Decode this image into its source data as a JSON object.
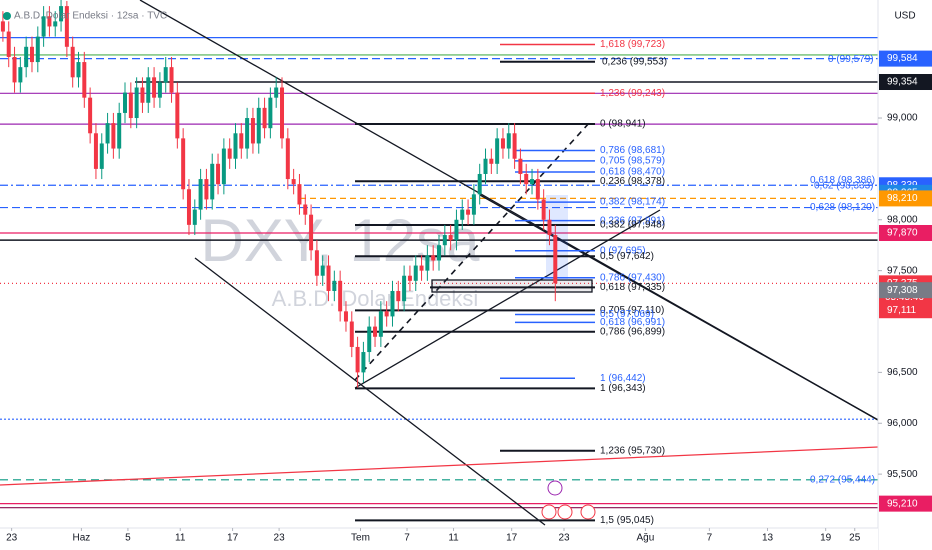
{
  "chart_data": {
    "type": "candlestick",
    "title": "A.B.D. Dolar Endeksi · 12sa · TVC",
    "watermark": "DXY, 12sa",
    "watermark_subtitle": "A.B.D. Dolar Endeksi",
    "currency": "USD",
    "countdown": "05:45:46",
    "up_color": "#089981",
    "down_color": "#f23645",
    "ylim": [
      95.0,
      100.16
    ],
    "yticks": [
      {
        "value": 99,
        "label": "99,000"
      },
      {
        "value": 98,
        "label": "98,000"
      },
      {
        "value": 97.5,
        "label": "97,500"
      },
      {
        "value": 96.5,
        "label": "96,500"
      },
      {
        "value": 96,
        "label": "96,000"
      },
      {
        "value": 95.5,
        "label": "95,500"
      }
    ],
    "xlim": [
      0,
      151
    ],
    "xticks": [
      {
        "value": 2,
        "label": "23"
      },
      {
        "value": 14,
        "label": "Haz"
      },
      {
        "value": 22,
        "label": "5"
      },
      {
        "value": 31,
        "label": "11"
      },
      {
        "value": 40,
        "label": "17"
      },
      {
        "value": 48,
        "label": "23"
      },
      {
        "value": 62,
        "label": "Tem"
      },
      {
        "value": 70,
        "label": "7"
      },
      {
        "value": 78,
        "label": "11"
      },
      {
        "value": 88,
        "label": "17"
      },
      {
        "value": 97,
        "label": "23"
      },
      {
        "value": 111,
        "label": "Ağu"
      },
      {
        "value": 122,
        "label": "7"
      },
      {
        "value": 132,
        "label": "13"
      },
      {
        "value": 142,
        "label": "19"
      },
      {
        "value": 147,
        "label": "25"
      }
    ],
    "ohlc": [
      [
        99.95,
        100.05,
        99.75,
        99.85
      ],
      [
        99.85,
        99.95,
        99.5,
        99.6
      ],
      [
        99.6,
        99.7,
        99.25,
        99.35
      ],
      [
        99.35,
        99.6,
        99.25,
        99.5
      ],
      [
        99.5,
        99.8,
        99.4,
        99.7
      ],
      [
        99.7,
        99.8,
        99.45,
        99.55
      ],
      [
        99.55,
        99.9,
        99.45,
        99.8
      ],
      [
        99.8,
        100.1,
        99.7,
        100
      ],
      [
        100,
        100.1,
        99.8,
        99.9
      ],
      [
        99.9,
        100.05,
        99.8,
        99.95
      ],
      [
        99.95,
        100.2,
        99.85,
        100.1
      ],
      [
        100.1,
        100.15,
        99.6,
        99.7
      ],
      [
        99.7,
        99.8,
        99.3,
        99.4
      ],
      [
        99.4,
        99.65,
        99.3,
        99.55
      ],
      [
        99.55,
        99.65,
        99.1,
        99.2
      ],
      [
        99.2,
        99.3,
        98.75,
        98.85
      ],
      [
        98.85,
        98.95,
        98.4,
        98.5
      ],
      [
        98.5,
        98.85,
        98.4,
        98.75
      ],
      [
        98.75,
        99.05,
        98.65,
        98.95
      ],
      [
        98.95,
        99.05,
        98.6,
        98.7
      ],
      [
        98.7,
        99.15,
        98.6,
        99.05
      ],
      [
        99.05,
        99.35,
        98.95,
        99.25
      ],
      [
        99.25,
        99.35,
        98.9,
        99
      ],
      [
        99,
        99.4,
        98.9,
        99.3
      ],
      [
        99.3,
        99.4,
        99.05,
        99.15
      ],
      [
        99.15,
        99.5,
        99.05,
        99.4
      ],
      [
        99.4,
        99.5,
        99.1,
        99.2
      ],
      [
        99.2,
        99.45,
        99.1,
        99.35
      ],
      [
        99.35,
        99.6,
        99.25,
        99.5
      ],
      [
        99.5,
        99.6,
        99.15,
        99.25
      ],
      [
        99.25,
        99.35,
        98.7,
        98.8
      ],
      [
        98.8,
        98.9,
        98.2,
        98.3
      ],
      [
        98.3,
        98.4,
        97.85,
        97.95
      ],
      [
        97.95,
        98.2,
        97.85,
        98.1
      ],
      [
        98.1,
        98.5,
        98,
        98.4
      ],
      [
        98.4,
        98.5,
        98.1,
        98.2
      ],
      [
        98.2,
        98.65,
        98.1,
        98.55
      ],
      [
        98.55,
        98.65,
        98.25,
        98.35
      ],
      [
        98.35,
        98.8,
        98.25,
        98.7
      ],
      [
        98.7,
        98.8,
        98.5,
        98.6
      ],
      [
        98.6,
        98.95,
        98.5,
        98.85
      ],
      [
        98.85,
        98.95,
        98.6,
        98.7
      ],
      [
        98.7,
        99.1,
        98.6,
        99
      ],
      [
        99,
        99.1,
        98.65,
        98.75
      ],
      [
        98.75,
        99.2,
        98.65,
        99.1
      ],
      [
        99.1,
        99.2,
        98.8,
        98.9
      ],
      [
        98.9,
        99.3,
        98.8,
        99.2
      ],
      [
        99.2,
        99.4,
        99.1,
        99.3
      ],
      [
        99.3,
        99.4,
        98.7,
        98.8
      ],
      [
        98.8,
        98.9,
        98.3,
        98.4
      ],
      [
        98.4,
        98.5,
        98.25,
        98.35
      ],
      [
        98.35,
        98.45,
        98.05,
        98.15
      ],
      [
        98.15,
        98.25,
        97.95,
        98.05
      ],
      [
        98.05,
        98.15,
        97.6,
        97.7
      ],
      [
        97.7,
        97.8,
        97.35,
        97.45
      ],
      [
        97.45,
        97.65,
        97.35,
        97.55
      ],
      [
        97.55,
        97.65,
        97.2,
        97.3
      ],
      [
        97.3,
        97.5,
        97.2,
        97.4
      ],
      [
        97.4,
        97.5,
        97,
        97.1
      ],
      [
        97.1,
        97.2,
        96.9,
        97
      ],
      [
        97,
        97.1,
        96.65,
        96.75
      ],
      [
        96.75,
        96.85,
        96.35,
        96.5
      ],
      [
        96.5,
        96.8,
        96.4,
        96.7
      ],
      [
        96.7,
        97.05,
        96.6,
        96.95
      ],
      [
        96.95,
        97.05,
        96.75,
        96.85
      ],
      [
        96.85,
        97.2,
        96.75,
        97.1
      ],
      [
        97.1,
        97.2,
        96.95,
        97.05
      ],
      [
        97.05,
        97.4,
        96.95,
        97.3
      ],
      [
        97.3,
        97.4,
        97.1,
        97.2
      ],
      [
        97.2,
        97.55,
        97.1,
        97.45
      ],
      [
        97.45,
        97.55,
        97.3,
        97.4
      ],
      [
        97.4,
        97.65,
        97.3,
        97.55
      ],
      [
        97.55,
        97.65,
        97.4,
        97.5
      ],
      [
        97.5,
        97.75,
        97.4,
        97.65
      ],
      [
        97.65,
        97.75,
        97.5,
        97.6
      ],
      [
        97.6,
        97.85,
        97.5,
        97.75
      ],
      [
        97.75,
        97.95,
        97.65,
        97.85
      ],
      [
        97.85,
        97.95,
        97.7,
        97.8
      ],
      [
        97.8,
        98.1,
        97.7,
        98
      ],
      [
        98,
        98.2,
        97.9,
        98.1
      ],
      [
        98.1,
        98.2,
        97.95,
        98.05
      ],
      [
        98.05,
        98.35,
        97.95,
        98.25
      ],
      [
        98.25,
        98.55,
        98.15,
        98.45
      ],
      [
        98.45,
        98.7,
        98.35,
        98.6
      ],
      [
        98.6,
        98.7,
        98.45,
        98.55
      ],
      [
        98.55,
        98.9,
        98.45,
        98.8
      ],
      [
        98.8,
        98.9,
        98.6,
        98.7
      ],
      [
        98.7,
        98.95,
        98.6,
        98.85
      ],
      [
        98.85,
        98.95,
        98.5,
        98.6
      ],
      [
        98.6,
        98.7,
        98.35,
        98.45
      ],
      [
        98.45,
        98.55,
        98.25,
        98.35
      ],
      [
        98.35,
        98.5,
        98.25,
        98.4
      ],
      [
        98.4,
        98.5,
        98.1,
        98.2
      ],
      [
        98.2,
        98.3,
        97.9,
        98
      ],
      [
        98,
        98.1,
        97.75,
        97.85
      ],
      [
        97.85,
        97.95,
        97.2,
        97.375
      ]
    ],
    "levels": [
      {
        "value": 99.79,
        "color": "#2962ff",
        "dash": "none"
      },
      {
        "value": 99.62,
        "color": "#4caf50",
        "dash": "none"
      },
      {
        "value": 99.584,
        "color": "#2962ff",
        "dash": "8 4"
      },
      {
        "value": 99.354,
        "color": "#131722",
        "dash": "none"
      },
      {
        "value": 99.243,
        "color": "#9c27b0",
        "dash": "none"
      },
      {
        "value": 98.94,
        "color": "#9c27b0",
        "dash": "none"
      },
      {
        "value": 98.339,
        "color": "#2962ff",
        "dash": "8 3 2 3"
      },
      {
        "value": 98.21,
        "color": "#ff9800",
        "dash": "6 4"
      },
      {
        "value": 98.12,
        "color": "#2962ff",
        "dash": "8 4"
      },
      {
        "value": 97.87,
        "color": "#e91e63",
        "dash": "none"
      },
      {
        "value": 97.8,
        "color": "#131722",
        "dash": "none"
      },
      {
        "value": 97.375,
        "color": "#f23645",
        "dash": "1 3"
      },
      {
        "value": 96.04,
        "color": "#2962ff",
        "dash": "2 2"
      },
      {
        "value": 95.444,
        "color": "#089981",
        "dash": "8 5"
      },
      {
        "value": 95.21,
        "color": "#e91e63",
        "dash": "none"
      },
      {
        "value": 95.17,
        "color": "#880e4f",
        "dash": "none"
      }
    ],
    "price_tags": [
      {
        "value": 99.584,
        "label": "99,584",
        "color": "#2962ff"
      },
      {
        "value": 99.354,
        "label": "99,354",
        "color": "#131722"
      },
      {
        "value": 98.339,
        "label": "98,339",
        "color": "#2962ff"
      },
      {
        "value": 98.265,
        "label": "98,265",
        "color": "#1e88e5"
      },
      {
        "value": 98.21,
        "label": "98,210",
        "color": "#ff9800"
      },
      {
        "value": 97.87,
        "label": "97,870",
        "color": "#e91e63"
      },
      {
        "value": 97.375,
        "label": "97,375",
        "color": "#f23645"
      },
      {
        "value": 97.308,
        "label": "97,308",
        "color": "#787b86"
      },
      {
        "value": 97.111,
        "label": "97,111",
        "color": "#f23645"
      },
      {
        "value": 95.21,
        "label": "95,210",
        "color": "#e91e63"
      }
    ],
    "annotations": [
      {
        "label": "1,618 (99,723)",
        "value": 99.723,
        "color": "#f23645"
      },
      {
        "label": "0,236 (99,553)",
        "value": 99.553,
        "color": "#131722"
      },
      {
        "label": "0 (99,579)",
        "value": 99.579,
        "color": "#2962ff"
      },
      {
        "label": "1,236 (99,243)",
        "value": 99.243,
        "color": "#f23645"
      },
      {
        "label": "0 (98,941)",
        "value": 98.941,
        "color": "#131722"
      },
      {
        "label": "0,786 (98,681)",
        "value": 98.681,
        "color": "#2962ff"
      },
      {
        "label": "0,705 (98,579)",
        "value": 98.579,
        "color": "#2962ff"
      },
      {
        "label": "0,618 (98,470)",
        "value": 98.47,
        "color": "#2962ff"
      },
      {
        "label": "0,236 (98,378)",
        "value": 98.378,
        "color": "#131722"
      },
      {
        "label": "0,618 (98,386)",
        "value": 98.386,
        "color": "#2962ff"
      },
      {
        "label": "0,62 (98,333)",
        "value": 98.333,
        "color": "#2962ff"
      },
      {
        "label": "0,382 (98,174)",
        "value": 98.174,
        "color": "#2962ff"
      },
      {
        "label": "0,628 (98,120)",
        "value": 98.12,
        "color": "#2962ff"
      },
      {
        "label": "0,236 (97,991)",
        "value": 97.991,
        "color": "#2962ff"
      },
      {
        "label": "0,382 (97,948)",
        "value": 97.948,
        "color": "#131722"
      },
      {
        "label": "0 (97,695)",
        "value": 97.695,
        "color": "#2962ff"
      },
      {
        "label": "0,5 (97,642)",
        "value": 97.642,
        "color": "#131722"
      },
      {
        "label": "0,786 (97,430)",
        "value": 97.43,
        "color": "#2962ff"
      },
      {
        "label": "0,618 (97,335)",
        "value": 97.335,
        "color": "#131722"
      },
      {
        "label": "0,705 (97,110)",
        "value": 97.11,
        "color": "#131722"
      },
      {
        "label": "0,5 (97,069)",
        "value": 97.069,
        "color": "#2962ff"
      },
      {
        "label": "0,618 (96,991)",
        "value": 96.991,
        "color": "#2962ff"
      },
      {
        "label": "0,786 (96,899)",
        "value": 96.899,
        "color": "#131722"
      },
      {
        "label": "1 (96,442)",
        "value": 96.442,
        "color": "#2962ff"
      },
      {
        "label": "1 (96,343)",
        "value": 96.343,
        "color": "#131722"
      },
      {
        "label": "1,236 (95,730)",
        "value": 95.73,
        "color": "#131722"
      },
      {
        "label": "0,272 (95,444)",
        "value": 95.444,
        "color": "#2962ff"
      },
      {
        "label": "1,5 (95,045)",
        "value": 95.045,
        "color": "#131722"
      }
    ]
  }
}
